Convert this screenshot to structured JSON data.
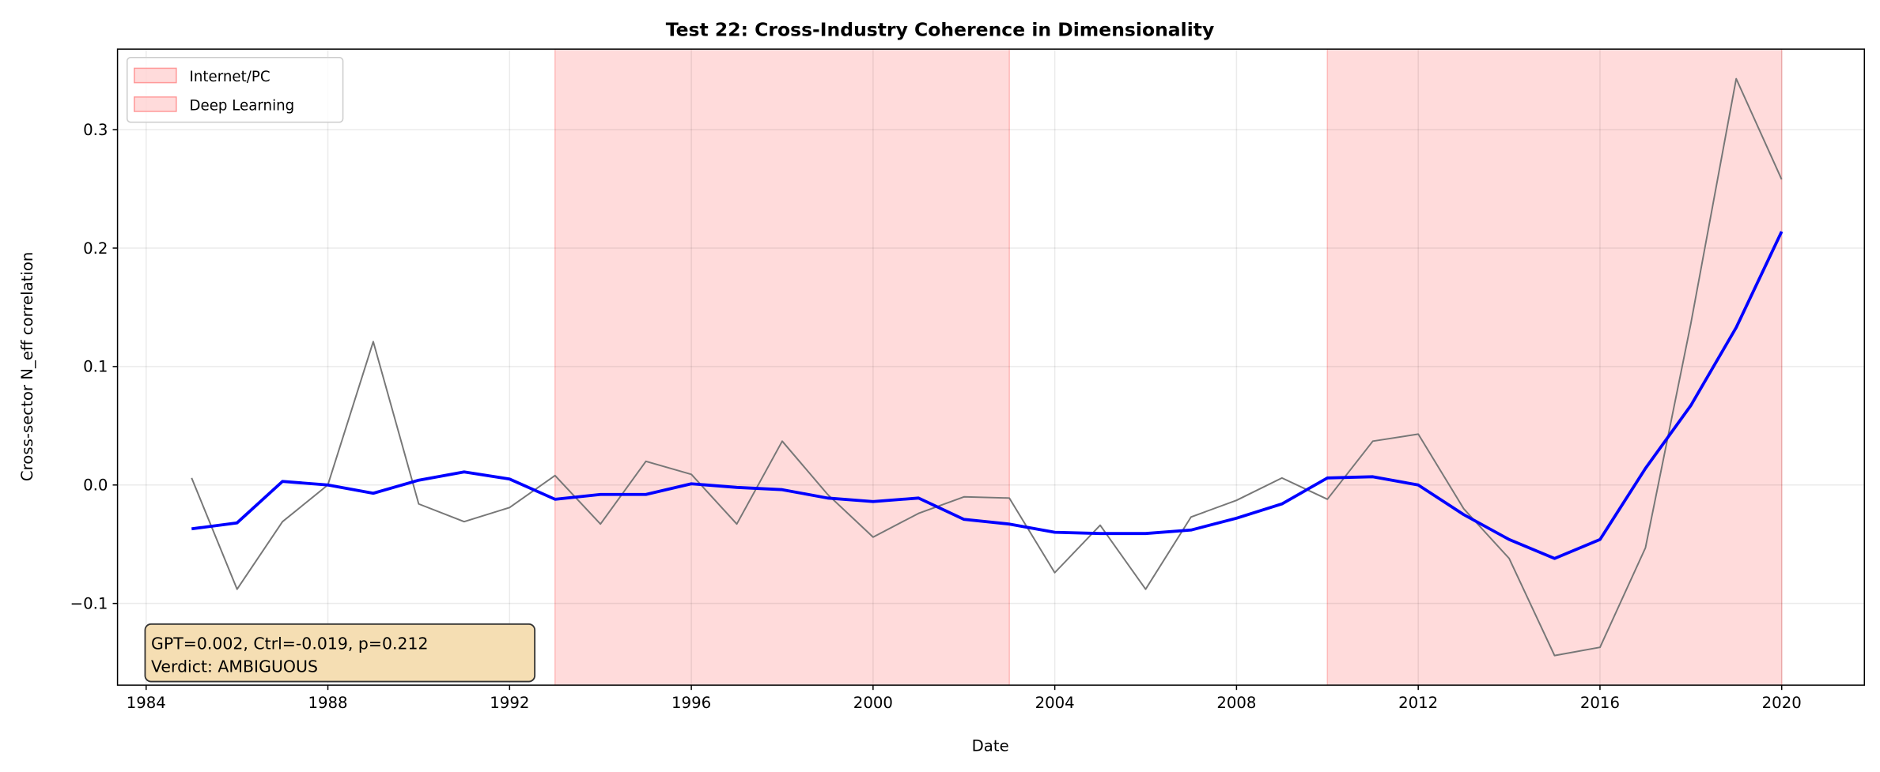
{
  "chart_data": {
    "type": "line",
    "title": "Test 22: Cross-Industry Coherence in Dimensionality",
    "xlabel": "Date",
    "ylabel": "Cross-sector N_eff correlation",
    "xlim": [
      1983.37,
      2021.82
    ],
    "ylim": [
      -0.169,
      0.368
    ],
    "xticks": [
      1984,
      1988,
      1992,
      1996,
      2000,
      2004,
      2008,
      2012,
      2016,
      2020
    ],
    "xtick_labels": [
      "1984",
      "1988",
      "1992",
      "1996",
      "2000",
      "2004",
      "2008",
      "2012",
      "2016",
      "2020"
    ],
    "yticks": [
      -0.1,
      0.0,
      0.1,
      0.2,
      0.3
    ],
    "ytick_labels": [
      "−0.1",
      "0.0",
      "0.1",
      "0.2",
      "0.3"
    ],
    "grid": true,
    "legend_position": "top-left",
    "shaded_regions": [
      {
        "name": "Internet/PC",
        "start": 1993,
        "end": 2003,
        "color": "#ff9999"
      },
      {
        "name": "Deep Learning",
        "start": 2010,
        "end": 2020,
        "color": "#ff9999"
      }
    ],
    "x": [
      1985,
      1986,
      1987,
      1988,
      1989,
      1990,
      1991,
      1992,
      1993,
      1994,
      1995,
      1996,
      1997,
      1998,
      1999,
      2000,
      2001,
      2002,
      2003,
      2004,
      2005,
      2006,
      2007,
      2008,
      2009,
      2010,
      2011,
      2012,
      2013,
      2014,
      2015,
      2016,
      2017,
      2018,
      2019,
      2020
    ],
    "series": [
      {
        "color": "#777777",
        "values": [
          0.006,
          -0.088,
          -0.031,
          0.0,
          0.121,
          -0.016,
          -0.031,
          -0.019,
          0.008,
          -0.033,
          0.02,
          0.009,
          -0.033,
          0.037,
          -0.008,
          -0.044,
          -0.024,
          -0.01,
          -0.011,
          -0.074,
          -0.034,
          -0.088,
          -0.027,
          -0.013,
          0.006,
          -0.012,
          0.037,
          0.043,
          -0.02,
          -0.062,
          -0.144,
          -0.137,
          -0.053,
          0.136,
          0.343,
          0.258
        ]
      },
      {
        "color": "#0000ff",
        "values": [
          -0.037,
          -0.032,
          0.003,
          0.0,
          -0.007,
          0.004,
          0.011,
          0.005,
          -0.012,
          -0.008,
          -0.008,
          0.001,
          -0.002,
          -0.004,
          -0.011,
          -0.014,
          -0.011,
          -0.029,
          -0.033,
          -0.04,
          -0.041,
          -0.041,
          -0.038,
          -0.028,
          -0.016,
          0.006,
          0.007,
          0.0,
          -0.025,
          -0.046,
          -0.062,
          -0.046,
          0.014,
          0.067,
          0.133,
          0.214
        ]
      }
    ],
    "annotation": {
      "line1": "GPT=0.002, Ctrl=-0.019, p=0.212",
      "line2": "Verdict: AMBIGUOUS",
      "background": "#f5deb3"
    }
  }
}
